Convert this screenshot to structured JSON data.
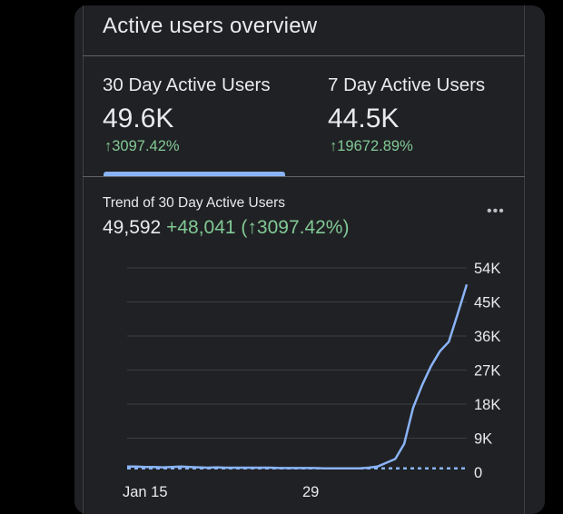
{
  "card": {
    "title": "Active users overview"
  },
  "metrics": [
    {
      "label": "30 Day Active Users",
      "value": "49.6K",
      "change": "↑3097.42%"
    },
    {
      "label": "7 Day Active Users",
      "value": "44.5K",
      "change": "↑19672.89%"
    }
  ],
  "trend": {
    "title": "Trend of 30 Day Active Users",
    "value": "49,592",
    "change": "+48,041 (↑3097.42%)",
    "more_icon": "more-horizontal-icon"
  },
  "colors": {
    "background": "#000000",
    "card": "#202124",
    "line": "#8ab4f8",
    "positive": "#81c995",
    "grid": "#3c4043"
  },
  "chart_data": {
    "type": "line",
    "title": "Trend of 30 Day Active Users",
    "ylim": [
      0,
      54000
    ],
    "y_ticks": [
      "54K",
      "45K",
      "36K",
      "27K",
      "18K",
      "9K",
      "0"
    ],
    "x_ticks": [
      "Jan 15",
      "29"
    ],
    "y_axis_position": "right",
    "grid": true,
    "series": [
      {
        "values": [
          1500,
          1500,
          1400,
          1400,
          1300,
          1400,
          1500,
          1400,
          1300,
          1200,
          1300,
          1200,
          1200,
          1200,
          1200,
          1200,
          1200,
          1100,
          1100,
          1100,
          1100,
          1100,
          1000,
          1000,
          1000,
          1000,
          1000,
          1200,
          1500,
          2500,
          3500,
          7500,
          17000,
          23000,
          28000,
          32000,
          34500,
          42000,
          49600
        ],
        "style": "solid"
      },
      {
        "values": [
          1000,
          1000,
          1000,
          1000,
          1000,
          1000,
          1000,
          1000,
          1000,
          1000,
          1000,
          1000,
          1000,
          1000,
          1000,
          1000,
          1000,
          1000,
          1000,
          1000,
          1000,
          1000,
          1000,
          1000,
          1000,
          1000,
          1000,
          1000,
          1000,
          1000,
          1000,
          1000,
          1000,
          1000,
          1000,
          1000,
          1000,
          1000,
          1000
        ],
        "style": "dashed"
      }
    ]
  }
}
